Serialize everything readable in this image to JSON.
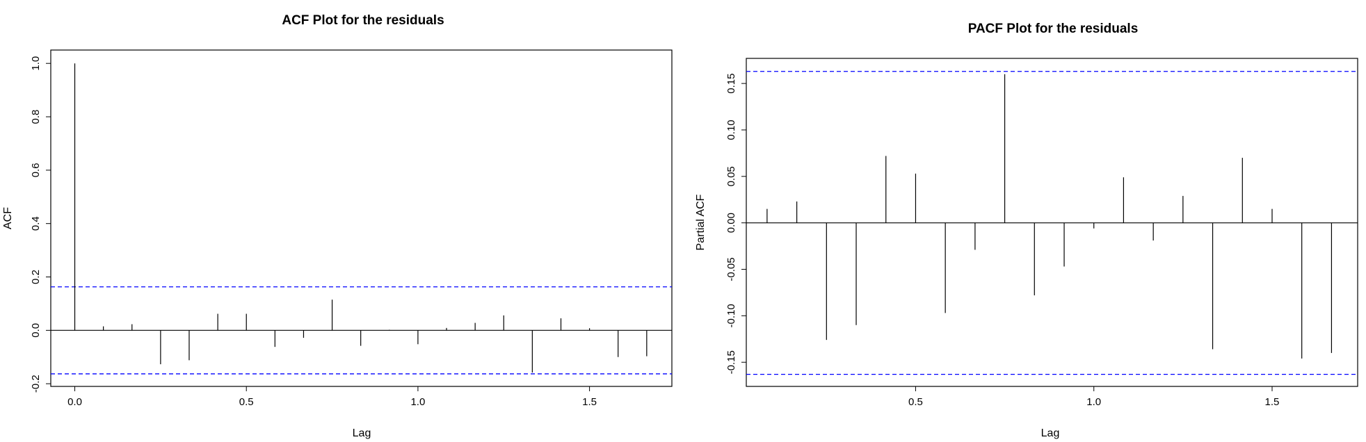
{
  "chart_data": [
    {
      "type": "bar",
      "title": "ACF Plot for the residuals",
      "xlabel": "Lag",
      "ylabel": "ACF",
      "xlim": [
        -0.07,
        1.74
      ],
      "ylim": [
        -0.21,
        1.05
      ],
      "xticks": [
        0.0,
        0.5,
        1.0,
        1.5
      ],
      "xtick_labels": [
        "0.0",
        "0.5",
        "1.0",
        "1.5"
      ],
      "yticks": [
        -0.2,
        0.0,
        0.2,
        0.4,
        0.6,
        0.8,
        1.0
      ],
      "ytick_labels": [
        "-0.2",
        "0.0",
        "0.2",
        "0.4",
        "0.6",
        "0.8",
        "1.0"
      ],
      "confidence_bound": 0.163,
      "colors": {
        "bars": "#000000",
        "confidence": "#0000ff",
        "zero_line": "#000000"
      },
      "x": [
        0.0,
        0.0833,
        0.1667,
        0.25,
        0.3333,
        0.4167,
        0.5,
        0.5833,
        0.6667,
        0.75,
        0.8333,
        0.9167,
        1.0,
        1.0833,
        1.1667,
        1.25,
        1.3333,
        1.4167,
        1.5,
        1.5833,
        1.6667
      ],
      "values": [
        1.0,
        0.015,
        0.023,
        -0.127,
        -0.112,
        0.062,
        0.062,
        -0.062,
        -0.028,
        0.115,
        -0.058,
        0.002,
        -0.052,
        0.009,
        0.028,
        0.056,
        -0.158,
        0.045,
        0.008,
        -0.1,
        -0.097
      ]
    },
    {
      "type": "bar",
      "title": "PACF Plot for the residuals",
      "xlabel": "Lag",
      "ylabel": "Partial ACF",
      "xlim": [
        0.025,
        1.74
      ],
      "ylim": [
        -0.176,
        0.177
      ],
      "xticks": [
        0.5,
        1.0,
        1.5
      ],
      "xtick_labels": [
        "0.5",
        "1.0",
        "1.5"
      ],
      "yticks": [
        -0.15,
        -0.1,
        -0.05,
        0.0,
        0.05,
        0.1,
        0.15
      ],
      "ytick_labels": [
        "-0.15",
        "-0.10",
        "-0.05",
        "0.00",
        "0.05",
        "0.10",
        "0.15"
      ],
      "confidence_bound": 0.163,
      "colors": {
        "bars": "#000000",
        "confidence": "#0000ff",
        "zero_line": "#000000"
      },
      "x": [
        0.0833,
        0.1667,
        0.25,
        0.3333,
        0.4167,
        0.5,
        0.5833,
        0.6667,
        0.75,
        0.8333,
        0.9167,
        1.0,
        1.0833,
        1.1667,
        1.25,
        1.3333,
        1.4167,
        1.5,
        1.5833,
        1.6667
      ],
      "values": [
        0.015,
        0.023,
        -0.126,
        -0.11,
        0.072,
        0.053,
        -0.097,
        -0.029,
        0.16,
        -0.078,
        -0.047,
        -0.006,
        0.049,
        -0.019,
        0.029,
        -0.136,
        0.07,
        0.015,
        -0.146,
        -0.14
      ]
    }
  ]
}
